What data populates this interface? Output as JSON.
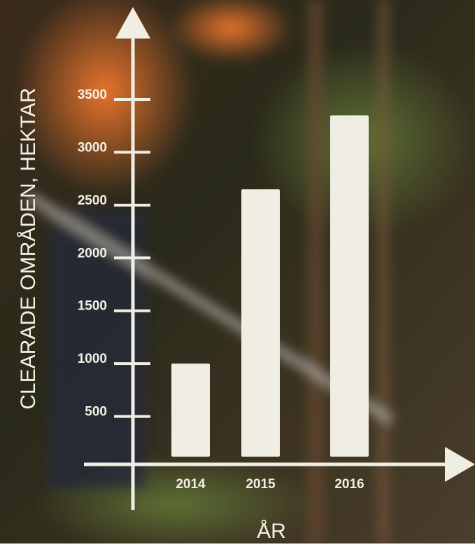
{
  "chart_data": {
    "type": "bar",
    "y_label": "CLEARADE OMRÅDEN, HEKTAR",
    "x_label": "ÅR",
    "categories": [
      "2014",
      "2015",
      "2016"
    ],
    "values": [
      1000,
      2650,
      3350
    ],
    "color": "#f0ede3",
    "ylim": [
      0,
      3500
    ],
    "yticks": [
      500,
      1000,
      1500,
      2000,
      2500,
      3000,
      3500
    ]
  }
}
